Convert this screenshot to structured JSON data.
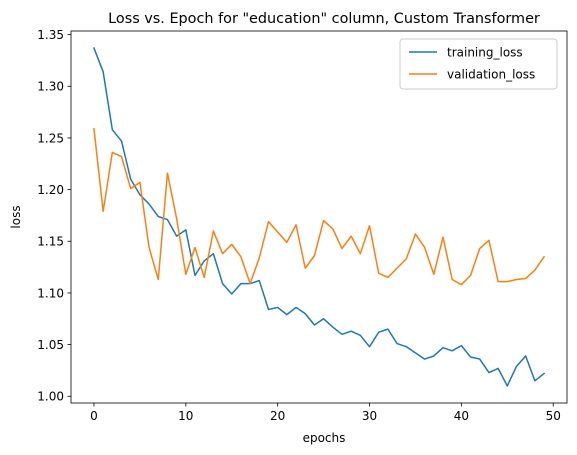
{
  "chart_data": {
    "type": "line",
    "title": "Loss vs. Epoch for \"education\" column, Custom Transformer",
    "xlabel": "epochs",
    "ylabel": "loss",
    "xlim": [
      -2.5,
      51.5
    ],
    "ylim": [
      0.9935,
      1.3535
    ],
    "xticks": [
      0,
      10,
      20,
      30,
      40,
      50
    ],
    "yticks": [
      1.0,
      1.05,
      1.1,
      1.15,
      1.2,
      1.25,
      1.3,
      1.35
    ],
    "grid": false,
    "legend_position": "top-right",
    "x": [
      0,
      1,
      2,
      3,
      4,
      5,
      6,
      7,
      8,
      9,
      10,
      11,
      12,
      13,
      14,
      15,
      16,
      17,
      18,
      19,
      20,
      21,
      22,
      23,
      24,
      25,
      26,
      27,
      28,
      29,
      30,
      31,
      32,
      33,
      34,
      35,
      36,
      37,
      38,
      39,
      40,
      41,
      42,
      43,
      44,
      45,
      46,
      47,
      48,
      49
    ],
    "series": [
      {
        "name": "training_loss",
        "color": "#1f77b4",
        "values": [
          1.337,
          1.314,
          1.258,
          1.247,
          1.21,
          1.195,
          1.186,
          1.174,
          1.171,
          1.155,
          1.161,
          1.117,
          1.131,
          1.138,
          1.109,
          1.099,
          1.109,
          1.109,
          1.112,
          1.084,
          1.086,
          1.079,
          1.086,
          1.08,
          1.069,
          1.075,
          1.067,
          1.06,
          1.063,
          1.059,
          1.048,
          1.062,
          1.065,
          1.051,
          1.048,
          1.042,
          1.036,
          1.039,
          1.047,
          1.044,
          1.049,
          1.038,
          1.036,
          1.023,
          1.027,
          1.01,
          1.029,
          1.039,
          1.015,
          1.022
        ]
      },
      {
        "name": "validation_loss",
        "color": "#ff7f0e",
        "values": [
          1.259,
          1.179,
          1.236,
          1.232,
          1.201,
          1.207,
          1.144,
          1.113,
          1.216,
          1.172,
          1.118,
          1.144,
          1.115,
          1.16,
          1.138,
          1.147,
          1.135,
          1.109,
          1.134,
          1.169,
          1.159,
          1.149,
          1.166,
          1.124,
          1.136,
          1.17,
          1.162,
          1.143,
          1.155,
          1.138,
          1.165,
          1.119,
          1.115,
          1.124,
          1.133,
          1.157,
          1.144,
          1.118,
          1.154,
          1.113,
          1.108,
          1.117,
          1.143,
          1.151,
          1.111,
          1.111,
          1.113,
          1.114,
          1.122,
          1.135
        ]
      }
    ]
  }
}
